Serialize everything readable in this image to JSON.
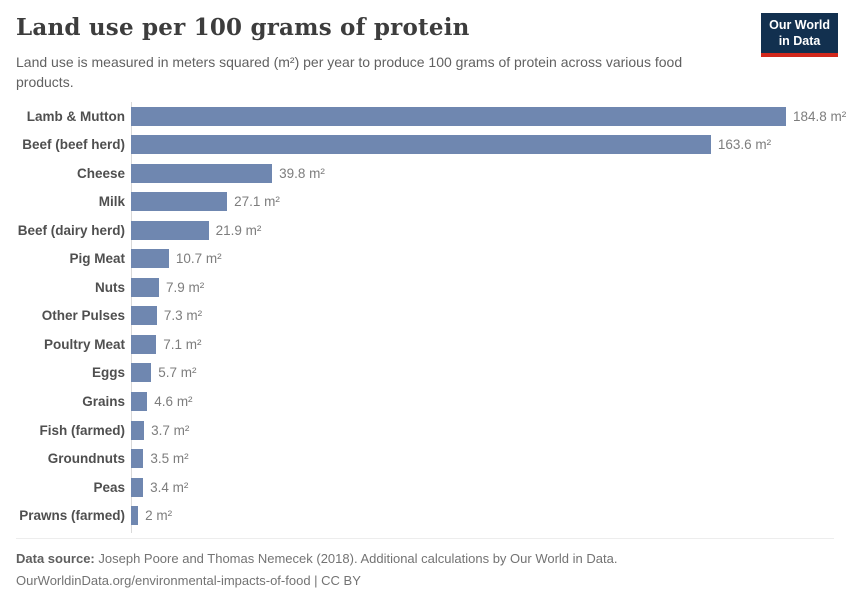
{
  "header": {
    "title": "Land use per 100 grams of protein",
    "subtitle": "Land use is measured in meters squared (m²) per year to produce 100 grams of protein across various food products.",
    "logo_line1": "Our World",
    "logo_line2": "in Data",
    "logo_bg_color": "#12304f",
    "logo_accent_color": "#d2281c"
  },
  "chart_data": {
    "type": "bar",
    "orientation": "horizontal",
    "title": "Land use per 100 grams of protein",
    "xlabel": "",
    "ylabel": "",
    "unit": "m²",
    "xlim": [
      0,
      184.8
    ],
    "grid": false,
    "legend": false,
    "bar_color": "#6f87b0",
    "categories": [
      "Lamb & Mutton",
      "Beef (beef herd)",
      "Cheese",
      "Milk",
      "Beef (dairy herd)",
      "Pig Meat",
      "Nuts",
      "Other Pulses",
      "Poultry Meat",
      "Eggs",
      "Grains",
      "Fish (farmed)",
      "Groundnuts",
      "Peas",
      "Prawns (farmed)"
    ],
    "values": [
      184.8,
      163.6,
      39.8,
      27.1,
      21.9,
      10.7,
      7.9,
      7.3,
      7.1,
      5.7,
      4.6,
      3.7,
      3.5,
      3.4,
      2
    ],
    "value_labels": [
      "184.8 m²",
      "163.6 m²",
      "39.8 m²",
      "27.1 m²",
      "21.9 m²",
      "10.7 m²",
      "7.9 m²",
      "7.3 m²",
      "7.1 m²",
      "5.7 m²",
      "4.6 m²",
      "3.7 m²",
      "3.5 m²",
      "3.4 m²",
      "2 m²"
    ]
  },
  "footer": {
    "source_label": "Data source:",
    "source_text": "Joseph Poore and Thomas Nemecek (2018). Additional calculations by Our World in Data.",
    "url_line": "OurWorldinData.org/environmental-impacts-of-food | CC BY"
  }
}
